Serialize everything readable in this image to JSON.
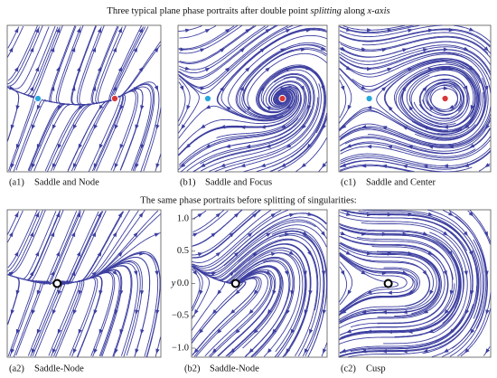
{
  "title": {
    "lead": "Three typical plane phase portraits after double point ",
    "emphasis": "splitting",
    "middle": " along ",
    "axis": "x-axis"
  },
  "top_panels": [
    {
      "tag": "(a1)",
      "caption": "Saddle and Node"
    },
    {
      "tag": "(b1)",
      "caption": "Saddle and Focus"
    },
    {
      "tag": "(c1)",
      "caption": "Saddle and Center"
    }
  ],
  "subtitle": "The same phase portraits before splitting of singularities:",
  "bottom_panels": [
    {
      "tag": "(a2)",
      "caption": "Saddle-Node"
    },
    {
      "tag": "(b2)",
      "caption": "Saddle-Node",
      "axis_label": "y",
      "ticks": [
        "1.0",
        "0.5",
        "0.0",
        "−0.5",
        "−1.0"
      ]
    },
    {
      "tag": "(c2)",
      "caption": "Cusp"
    }
  ]
}
